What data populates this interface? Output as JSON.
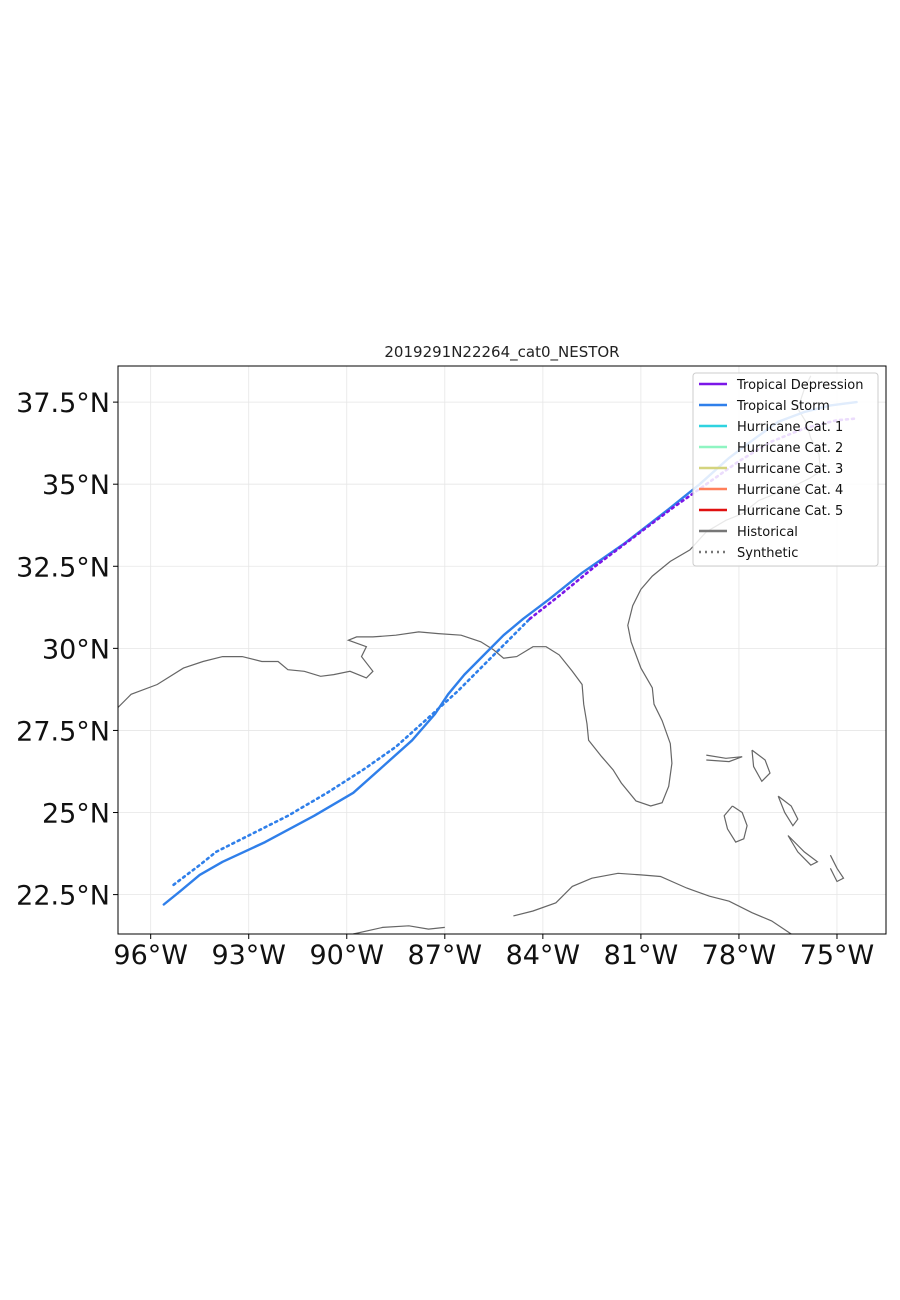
{
  "map": {
    "title": "2019291N22264_cat0_NESTOR",
    "lon_range": [
      -97.0,
      -73.5
    ],
    "lat_range": [
      21.3,
      38.6
    ],
    "lon_ticks": [
      {
        "value": -96,
        "label": "96°W"
      },
      {
        "value": -93,
        "label": "93°W"
      },
      {
        "value": -90,
        "label": "90°W"
      },
      {
        "value": -87,
        "label": "87°W"
      },
      {
        "value": -84,
        "label": "84°W"
      },
      {
        "value": -81,
        "label": "81°W"
      },
      {
        "value": -78,
        "label": "78°W"
      },
      {
        "value": -75,
        "label": "75°W"
      }
    ],
    "lat_ticks": [
      {
        "value": 37.5,
        "label": "37.5°N"
      },
      {
        "value": 35,
        "label": "35°N"
      },
      {
        "value": 32.5,
        "label": "32.5°N"
      },
      {
        "value": 30,
        "label": "30°N"
      },
      {
        "value": 27.5,
        "label": "27.5°N"
      },
      {
        "value": 25,
        "label": "25°N"
      },
      {
        "value": 22.5,
        "label": "22.5°N"
      }
    ],
    "grid": true,
    "coastline_color": "#666666",
    "legend": {
      "position": "top-right",
      "entries": [
        {
          "label": "Tropical Depression",
          "color": "#7b17e8",
          "style": "solid"
        },
        {
          "label": "Tropical Storm",
          "color": "#2f7fea",
          "style": "solid"
        },
        {
          "label": "Hurricane Cat. 1",
          "color": "#2fd3e0",
          "style": "solid"
        },
        {
          "label": "Hurricane Cat. 2",
          "color": "#8ff5c2",
          "style": "solid"
        },
        {
          "label": "Hurricane Cat. 3",
          "color": "#d4d47e",
          "style": "solid"
        },
        {
          "label": "Hurricane Cat. 4",
          "color": "#ff7f5a",
          "style": "solid"
        },
        {
          "label": "Hurricane Cat. 5",
          "color": "#e01010",
          "style": "solid"
        },
        {
          "label": "Historical",
          "color": "#777777",
          "style": "solid"
        },
        {
          "label": "Synthetic",
          "color": "#777777",
          "style": "dotted"
        }
      ]
    },
    "tracks": [
      {
        "kind": "historical",
        "category": "Tropical Storm",
        "color": "#2f7fea",
        "points": [
          [
            -95.6,
            22.2
          ],
          [
            -95.1,
            22.6
          ],
          [
            -94.5,
            23.1
          ],
          [
            -93.8,
            23.5
          ],
          [
            -92.5,
            24.1
          ],
          [
            -91.0,
            24.9
          ],
          [
            -89.8,
            25.6
          ],
          [
            -88.9,
            26.4
          ],
          [
            -88.0,
            27.2
          ],
          [
            -87.3,
            28.0
          ],
          [
            -86.9,
            28.6
          ],
          [
            -86.4,
            29.2
          ],
          [
            -85.8,
            29.8
          ],
          [
            -85.2,
            30.4
          ],
          [
            -84.6,
            30.9
          ],
          [
            -83.8,
            31.5
          ],
          [
            -82.8,
            32.3
          ],
          [
            -81.5,
            33.2
          ],
          [
            -80.2,
            34.2
          ],
          [
            -79.2,
            35.0
          ],
          [
            -78.3,
            35.8
          ],
          [
            -77.5,
            36.4
          ],
          [
            -76.8,
            36.9
          ],
          [
            -76.0,
            37.2
          ],
          [
            -75.2,
            37.4
          ],
          [
            -74.4,
            37.5
          ]
        ]
      },
      {
        "kind": "synthetic",
        "category": "Tropical Storm",
        "color": "#2f7fea",
        "points": [
          [
            -95.3,
            22.8
          ],
          [
            -94.9,
            23.1
          ],
          [
            -94.5,
            23.4
          ],
          [
            -94.0,
            23.8
          ],
          [
            -93.0,
            24.3
          ],
          [
            -91.8,
            24.9
          ],
          [
            -90.6,
            25.6
          ],
          [
            -89.5,
            26.3
          ],
          [
            -88.5,
            27.0
          ],
          [
            -87.6,
            27.8
          ],
          [
            -86.6,
            28.7
          ],
          [
            -85.8,
            29.5
          ],
          [
            -85.1,
            30.2
          ],
          [
            -84.4,
            30.9
          ]
        ]
      },
      {
        "kind": "synthetic",
        "category": "Tropical Depression",
        "color": "#7b17e8",
        "points": [
          [
            -84.4,
            30.9
          ],
          [
            -83.5,
            31.6
          ],
          [
            -82.4,
            32.5
          ],
          [
            -81.2,
            33.4
          ],
          [
            -80.0,
            34.3
          ],
          [
            -79.0,
            35.0
          ]
        ]
      },
      {
        "kind": "synthetic",
        "category": "Tropical Depression",
        "color": "#7b17e8",
        "points": [
          [
            -79.0,
            35.0
          ],
          [
            -78.0,
            35.7
          ],
          [
            -77.0,
            36.3
          ],
          [
            -76.0,
            36.7
          ],
          [
            -75.0,
            36.95
          ],
          [
            -74.4,
            37.0
          ]
        ]
      }
    ]
  }
}
